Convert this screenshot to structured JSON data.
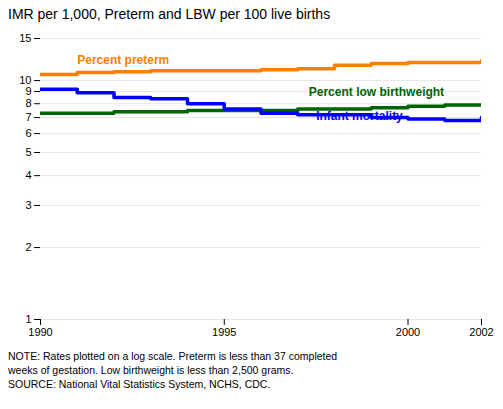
{
  "chart_data": {
    "type": "line",
    "title": "IMR per 1,000, Preterm and LBW per 100 live births",
    "x": [
      1990,
      1991,
      1992,
      1993,
      1994,
      1995,
      1996,
      1997,
      1998,
      1999,
      2000,
      2001,
      2002
    ],
    "series": [
      {
        "color": "#FF7F00",
        "values": [
          10.6,
          10.8,
          10.9,
          11.0,
          11.0,
          11.0,
          11.1,
          11.2,
          11.6,
          11.8,
          11.9,
          11.9,
          12.1
        ]
      },
      {
        "color": "#006400",
        "values": [
          7.3,
          7.3,
          7.4,
          7.4,
          7.5,
          7.5,
          7.5,
          7.6,
          7.6,
          7.7,
          7.8,
          7.9,
          7.9
        ]
      },
      {
        "color": "#0000FF",
        "values": [
          9.2,
          8.9,
          8.5,
          8.4,
          8.0,
          7.6,
          7.3,
          7.2,
          7.2,
          7.0,
          6.9,
          6.8,
          7.0
        ]
      }
    ],
    "line_style": "steps",
    "log": "y",
    "xlim": [
      1990,
      2002
    ],
    "xticks": [
      1990,
      1995,
      2000,
      2002
    ],
    "ylim": [
      1,
      15
    ],
    "yticks": [
      1,
      2,
      3,
      4,
      5,
      6,
      7,
      8,
      9,
      10,
      15
    ],
    "grid": "y",
    "annotations": [
      {
        "text": "Percent preterm",
        "x": 1991.0,
        "y": 11.7,
        "color": "#FF7F00"
      },
      {
        "text": "Percent low birthweight",
        "x": 1997.3,
        "y": 8.6,
        "color": "#006400"
      },
      {
        "text": "Infant mortality",
        "x": 1997.5,
        "y": 6.85,
        "color": "#0000FF"
      }
    ],
    "notes": [
      "NOTE: Rates plotted on a log scale.  Preterm is less than 37 completed",
      "weeks of gestation.  Low birthweight is less than 2,500 grams.",
      "SOURCE: National Vital Statistics System, NCHS, CDC."
    ]
  }
}
